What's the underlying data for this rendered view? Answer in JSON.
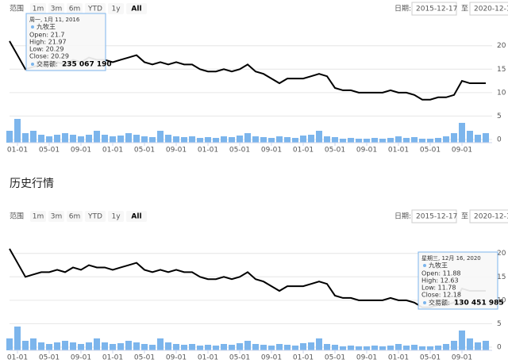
{
  "heading": "历史行情",
  "chart_data": [
    {
      "type": "line",
      "range_label": "范围",
      "range_buttons": [
        "1m",
        "3m",
        "6m",
        "YTD",
        "1y",
        "All"
      ],
      "date_label": "日期:",
      "date_from": "2015-12-17",
      "date_to_label": "至",
      "date_to": "2020-12-1",
      "categories": [
        null,
        "01-01",
        null,
        null,
        null,
        "05-01",
        null,
        null,
        null,
        "09-01",
        null,
        null,
        null,
        "01-01",
        null,
        null,
        null,
        "05-01",
        null,
        null,
        null,
        "09-01",
        null,
        null,
        null,
        "01-01",
        null,
        null,
        null,
        "05-01",
        null,
        null,
        null,
        "09-01",
        null,
        null,
        null,
        "01-01",
        null,
        null,
        null,
        "05-01",
        null,
        null,
        null,
        "09-01",
        null,
        null,
        null,
        "01-01",
        null,
        null,
        null,
        "05-01",
        null,
        null,
        null,
        "09-01",
        null,
        null,
        null
      ],
      "series": [
        {
          "name": "九牧王",
          "color": "#000000",
          "values": [
            21,
            18,
            15,
            15.5,
            16,
            16,
            16.5,
            16,
            17,
            16.5,
            17.5,
            17,
            17,
            16.5,
            17,
            17.5,
            18,
            16.5,
            16,
            16.5,
            16,
            16.5,
            16,
            16,
            15,
            14.5,
            14.5,
            15,
            14.5,
            15,
            16,
            14.5,
            14,
            13,
            12,
            13,
            13,
            13,
            13.5,
            14,
            13.5,
            11,
            10.5,
            10.5,
            10,
            10,
            10,
            10,
            10.5,
            10,
            10,
            9.5,
            8.5,
            8.5,
            9,
            9,
            9.5,
            12.5,
            12,
            12,
            12
          ]
        },
        {
          "color": "#7cb5ec",
          "axis": "y2",
          "values": [
            150000000,
            300000000,
            120000000,
            150000000,
            100000000,
            80000000,
            100000000,
            120000000,
            100000000,
            80000000,
            100000000,
            150000000,
            100000000,
            80000000,
            90000000,
            120000000,
            100000000,
            80000000,
            70000000,
            150000000,
            100000000,
            80000000,
            70000000,
            80000000,
            60000000,
            70000000,
            60000000,
            80000000,
            70000000,
            90000000,
            120000000,
            80000000,
            70000000,
            60000000,
            80000000,
            70000000,
            60000000,
            90000000,
            100000000,
            150000000,
            80000000,
            70000000,
            50000000,
            60000000,
            50000000,
            50000000,
            60000000,
            50000000,
            60000000,
            80000000,
            60000000,
            70000000,
            50000000,
            50000000,
            60000000,
            80000000,
            120000000,
            250000000,
            150000000,
            100000000,
            120000000
          ]
        }
      ],
      "ylim": [
        0,
        23
      ],
      "yticks": [
        0,
        5,
        10,
        15,
        20
      ],
      "y2lim": [
        0,
        400000000
      ],
      "grid": true,
      "tooltip": {
        "date": "周一, 1月 11, 2016",
        "lines": [
          "Open: 21.7",
          "High: 21.97",
          "Low: 20.29",
          "Close: 20.29"
        ],
        "volume_label": "交易额:",
        "volume": "235 067 190"
      }
    },
    {
      "type": "line",
      "range_label": "范围",
      "range_buttons": [
        "1m",
        "3m",
        "6m",
        "YTD",
        "1y",
        "All"
      ],
      "date_label": "日期:",
      "date_from": "2015-12-17",
      "date_to_label": "至",
      "date_to": "2020-12-1",
      "categories": [
        null,
        "01-01",
        null,
        null,
        null,
        "05-01",
        null,
        null,
        null,
        "09-01",
        null,
        null,
        null,
        "01-01",
        null,
        null,
        null,
        "05-01",
        null,
        null,
        null,
        "09-01",
        null,
        null,
        null,
        "01-01",
        null,
        null,
        null,
        "05-01",
        null,
        null,
        null,
        "09-01",
        null,
        null,
        null,
        "01-01",
        null,
        null,
        null,
        "05-01",
        null,
        null,
        null,
        "09-01",
        null,
        null,
        null,
        "01-01",
        null,
        null,
        null,
        "05-01",
        null,
        null,
        null,
        "09-01",
        null,
        null,
        null
      ],
      "series": [
        {
          "name": "九牧王",
          "color": "#000000",
          "values": [
            21,
            18,
            15,
            15.5,
            16,
            16,
            16.5,
            16,
            17,
            16.5,
            17.5,
            17,
            17,
            16.5,
            17,
            17.5,
            18,
            16.5,
            16,
            16.5,
            16,
            16.5,
            16,
            16,
            15,
            14.5,
            14.5,
            15,
            14.5,
            15,
            16,
            14.5,
            14,
            13,
            12,
            13,
            13,
            13,
            13.5,
            14,
            13.5,
            11,
            10.5,
            10.5,
            10,
            10,
            10,
            10,
            10.5,
            10,
            10,
            9.5,
            8.5,
            8.5,
            9,
            9,
            9.5,
            12.5,
            12,
            12,
            12
          ]
        },
        {
          "color": "#7cb5ec",
          "axis": "y2",
          "values": [
            150000000,
            300000000,
            120000000,
            150000000,
            100000000,
            80000000,
            100000000,
            120000000,
            100000000,
            80000000,
            100000000,
            150000000,
            100000000,
            80000000,
            90000000,
            120000000,
            100000000,
            80000000,
            70000000,
            150000000,
            100000000,
            80000000,
            70000000,
            80000000,
            60000000,
            70000000,
            60000000,
            80000000,
            70000000,
            90000000,
            120000000,
            80000000,
            70000000,
            60000000,
            80000000,
            70000000,
            60000000,
            90000000,
            100000000,
            150000000,
            80000000,
            70000000,
            50000000,
            60000000,
            50000000,
            50000000,
            60000000,
            50000000,
            60000000,
            80000000,
            60000000,
            70000000,
            50000000,
            50000000,
            60000000,
            80000000,
            120000000,
            250000000,
            150000000,
            100000000,
            120000000
          ]
        }
      ],
      "ylim": [
        0,
        23
      ],
      "yticks": [
        0,
        5,
        10,
        15,
        20
      ],
      "y2lim": [
        0,
        400000000
      ],
      "grid": true,
      "tooltip": {
        "date": "星期三, 12月 16, 2020",
        "lines": [
          "Open: 11.88",
          "High: 12.63",
          "Low: 11.78",
          "Close: 12.18"
        ],
        "volume_label": "交易额:",
        "volume": "130 451 985"
      }
    }
  ]
}
